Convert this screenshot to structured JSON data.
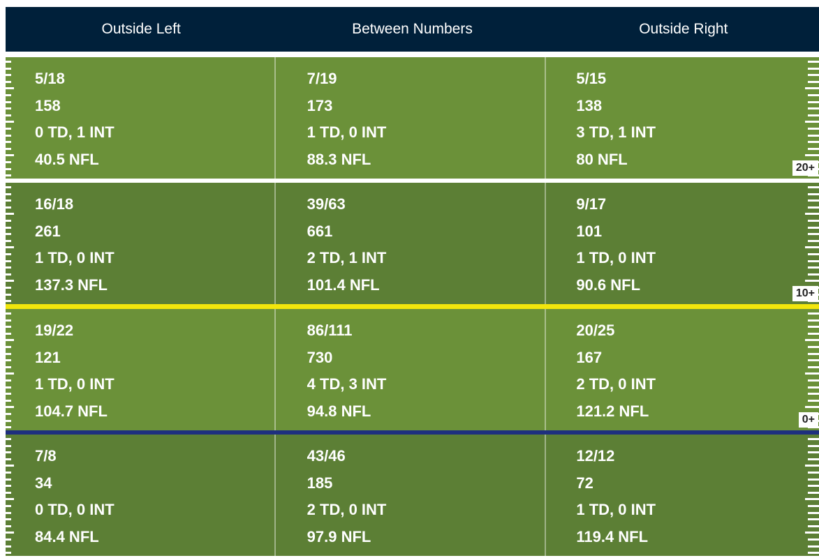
{
  "columns": [
    "Outside Left",
    "Between Numbers",
    "Outside Right"
  ],
  "zones": [
    {
      "label": "20+",
      "cells": [
        [
          "5/18",
          "158",
          "0 TD, 1 INT",
          "40.5 NFL"
        ],
        [
          "7/19",
          "173",
          "1 TD, 0 INT",
          "88.3 NFL"
        ],
        [
          "5/15",
          "138",
          "3 TD, 1 INT",
          "80 NFL"
        ]
      ]
    },
    {
      "label": "10+",
      "cells": [
        [
          "16/18",
          "261",
          "1 TD, 0 INT",
          "137.3 NFL"
        ],
        [
          "39/63",
          "661",
          "2 TD, 1 INT",
          "101.4 NFL"
        ],
        [
          "9/17",
          "101",
          "1 TD, 0 INT",
          "90.6 NFL"
        ]
      ]
    },
    {
      "label": "0+",
      "cells": [
        [
          "19/22",
          "121",
          "1 TD, 0 INT",
          "104.7 NFL"
        ],
        [
          "86/111",
          "730",
          "4 TD, 3 INT",
          "94.8 NFL"
        ],
        [
          "20/25",
          "167",
          "2 TD, 0 INT",
          "121.2 NFL"
        ]
      ]
    },
    {
      "label": "",
      "cells": [
        [
          "7/8",
          "34",
          "0 TD, 0 INT",
          "84.4 NFL"
        ],
        [
          "43/46",
          "185",
          "2 TD, 0 INT",
          "97.9 NFL"
        ],
        [
          "12/12",
          "72",
          "1 TD, 0 INT",
          "119.4 NFL"
        ]
      ]
    }
  ],
  "colors": {
    "header_bg": "#00203a",
    "field_light": "#6b9139",
    "field_dark": "#5c7f35",
    "line_of_scrimmage": "#1e2f7e",
    "first_down_line": "#f2e60c"
  },
  "chart_data": {
    "type": "table",
    "columns": [
      "Outside Left",
      "Between Numbers",
      "Outside Right"
    ],
    "rows": [
      "20+",
      "10+",
      "0+",
      ""
    ],
    "values": [
      [
        {
          "comp_att": "5/18",
          "yards": 158,
          "td": 0,
          "int": 1,
          "rating": 40.5
        },
        {
          "comp_att": "7/19",
          "yards": 173,
          "td": 1,
          "int": 0,
          "rating": 88.3
        },
        {
          "comp_att": "5/15",
          "yards": 138,
          "td": 3,
          "int": 1,
          "rating": 80
        }
      ],
      [
        {
          "comp_att": "16/18",
          "yards": 261,
          "td": 1,
          "int": 0,
          "rating": 137.3
        },
        {
          "comp_att": "39/63",
          "yards": 661,
          "td": 2,
          "int": 1,
          "rating": 101.4
        },
        {
          "comp_att": "9/17",
          "yards": 101,
          "td": 1,
          "int": 0,
          "rating": 90.6
        }
      ],
      [
        {
          "comp_att": "19/22",
          "yards": 121,
          "td": 1,
          "int": 0,
          "rating": 104.7
        },
        {
          "comp_att": "86/111",
          "yards": 730,
          "td": 4,
          "int": 3,
          "rating": 94.8
        },
        {
          "comp_att": "20/25",
          "yards": 167,
          "td": 2,
          "int": 0,
          "rating": 121.2
        }
      ],
      [
        {
          "comp_att": "7/8",
          "yards": 34,
          "td": 0,
          "int": 0,
          "rating": 84.4
        },
        {
          "comp_att": "43/46",
          "yards": 185,
          "td": 2,
          "int": 0,
          "rating": 97.9
        },
        {
          "comp_att": "12/12",
          "yards": 72,
          "td": 1,
          "int": 0,
          "rating": 119.4
        }
      ]
    ]
  }
}
